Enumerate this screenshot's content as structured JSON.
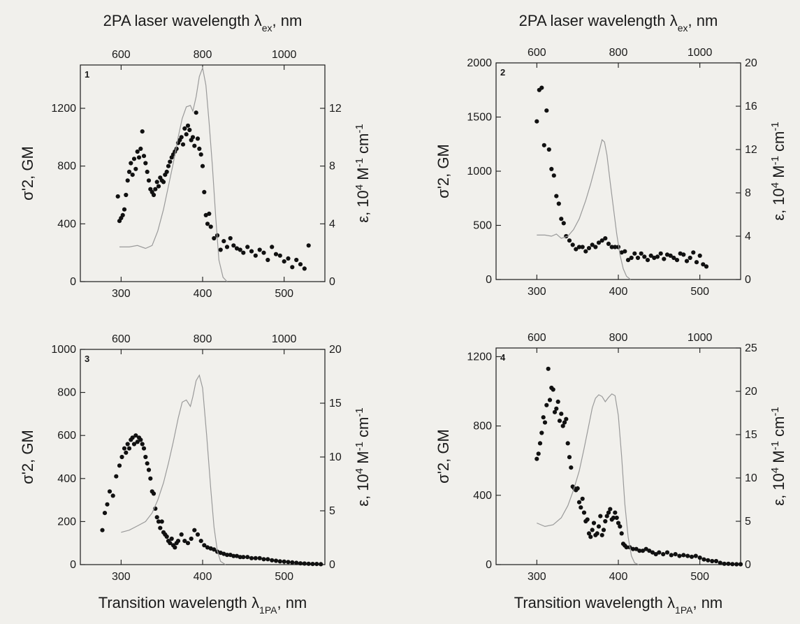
{
  "labels": {
    "top_left": {
      "pre": "2PA laser wavelength λ",
      "sub": "ex",
      "post": ", nm"
    },
    "top_right": {
      "pre": "2PA laser wavelength λ",
      "sub": "ex",
      "post": ", nm"
    },
    "bottom_left": {
      "pre": "Transition wavelength λ",
      "sub": "1PA",
      "post": ", nm"
    },
    "bottom_right": {
      "pre": "Transition wavelength λ",
      "sub": "1PA",
      "post": ", nm"
    },
    "ylabel_left": "σ'2, GM",
    "ylabel_right": {
      "pre": "ε,  10",
      "sup1": "4",
      "mid": " M",
      "sup2": "-1",
      "mid2": " cm",
      "sup3": "-1"
    }
  },
  "colors": {
    "points": "#111111",
    "absorption_line": "#9a9a9a",
    "background": "#f1f0ec"
  },
  "chart_data": [
    {
      "type": "scatter",
      "panel": "1",
      "x_range": [
        250,
        550
      ],
      "x_ticks": [
        300,
        400,
        500
      ],
      "top_ticks": [
        600,
        800,
        1000
      ],
      "y_left_range": [
        0,
        1500
      ],
      "y_left_ticks": [
        0,
        400,
        800,
        1200
      ],
      "y_right_range": [
        0,
        15
      ],
      "y_right_ticks": [
        0,
        4,
        8,
        12
      ],
      "series": [
        {
          "kind": "points",
          "axis": "left",
          "x": [
            296,
            298,
            300,
            302,
            304,
            306,
            308,
            310,
            312,
            314,
            316,
            318,
            320,
            322,
            324,
            326,
            328,
            330,
            332,
            334,
            336,
            338,
            340,
            342,
            344,
            346,
            348,
            350,
            352,
            354,
            356,
            358,
            360,
            362,
            364,
            366,
            368,
            370,
            372,
            374,
            376,
            378,
            380,
            382,
            384,
            386,
            388,
            390,
            392,
            394,
            396,
            398,
            400,
            402,
            404,
            406,
            408,
            410,
            414,
            418,
            422,
            426,
            430,
            434,
            438,
            442,
            446,
            450,
            455,
            460,
            465,
            470,
            475,
            480,
            485,
            490,
            495,
            500,
            505,
            510,
            515,
            520,
            525,
            530
          ],
          "y": [
            590,
            420,
            440,
            460,
            500,
            600,
            700,
            760,
            820,
            740,
            850,
            780,
            900,
            860,
            920,
            1040,
            870,
            820,
            760,
            700,
            640,
            620,
            600,
            640,
            690,
            660,
            720,
            700,
            690,
            740,
            760,
            800,
            830,
            860,
            880,
            900,
            920,
            960,
            980,
            1000,
            950,
            1060,
            1020,
            1080,
            1050,
            980,
            1000,
            940,
            1170,
            990,
            920,
            880,
            800,
            620,
            460,
            400,
            470,
            380,
            300,
            320,
            220,
            280,
            240,
            300,
            250,
            230,
            220,
            200,
            240,
            210,
            180,
            220,
            200,
            150,
            240,
            190,
            180,
            140,
            160,
            100,
            150,
            120,
            90,
            250
          ]
        },
        {
          "kind": "line",
          "axis": "right",
          "x": [
            298,
            310,
            320,
            330,
            338,
            345,
            352,
            358,
            364,
            370,
            375,
            380,
            385,
            388,
            392,
            396,
            400,
            404,
            408,
            412,
            416,
            420,
            425,
            430
          ],
          "y": [
            2.4,
            2.4,
            2.5,
            2.3,
            2.5,
            3.5,
            5.0,
            6.6,
            8.2,
            10.0,
            11.3,
            12.1,
            12.2,
            11.8,
            12.8,
            14.2,
            14.8,
            13.6,
            11.0,
            8.0,
            4.5,
            1.5,
            0.3,
            0.0
          ]
        }
      ]
    },
    {
      "type": "scatter",
      "panel": "2",
      "x_range": [
        250,
        550
      ],
      "x_ticks": [
        300,
        400,
        500
      ],
      "top_ticks": [
        600,
        800,
        1000
      ],
      "y_left_range": [
        0,
        2000
      ],
      "y_left_ticks": [
        0,
        500,
        1000,
        1500,
        2000
      ],
      "y_right_range": [
        0,
        20
      ],
      "y_right_ticks": [
        0,
        4,
        8,
        12,
        16,
        20
      ],
      "series": [
        {
          "kind": "points",
          "axis": "left",
          "x": [
            300,
            303,
            306,
            309,
            312,
            315,
            318,
            321,
            324,
            327,
            330,
            333,
            336,
            340,
            344,
            348,
            352,
            356,
            360,
            364,
            368,
            372,
            376,
            380,
            384,
            388,
            392,
            396,
            400,
            404,
            408,
            412,
            416,
            420,
            424,
            428,
            432,
            436,
            440,
            444,
            448,
            452,
            456,
            460,
            464,
            468,
            472,
            476,
            480,
            484,
            488,
            492,
            496,
            500,
            504,
            508
          ],
          "y": [
            1460,
            1750,
            1770,
            1240,
            1560,
            1200,
            1020,
            960,
            770,
            700,
            560,
            520,
            400,
            360,
            320,
            280,
            300,
            300,
            260,
            290,
            320,
            300,
            340,
            360,
            380,
            330,
            300,
            300,
            300,
            250,
            260,
            180,
            200,
            240,
            200,
            240,
            210,
            180,
            220,
            200,
            210,
            240,
            190,
            230,
            220,
            200,
            180,
            240,
            230,
            170,
            200,
            250,
            160,
            220,
            140,
            120
          ]
        },
        {
          "kind": "line",
          "axis": "right",
          "x": [
            300,
            310,
            318,
            324,
            330,
            338,
            345,
            352,
            360,
            366,
            372,
            377,
            380,
            383,
            386,
            390,
            394,
            398,
            402,
            406,
            410,
            415
          ],
          "y": [
            4.1,
            4.1,
            4.0,
            4.2,
            3.8,
            4.0,
            4.6,
            5.6,
            7.3,
            8.8,
            10.5,
            12.0,
            12.9,
            12.7,
            11.5,
            9.0,
            6.6,
            4.2,
            2.3,
            1.0,
            0.3,
            0.0
          ]
        }
      ]
    },
    {
      "type": "scatter",
      "panel": "3",
      "x_range": [
        250,
        550
      ],
      "x_ticks": [
        300,
        400,
        500
      ],
      "top_ticks": [
        600,
        800,
        1000
      ],
      "y_left_range": [
        0,
        1000
      ],
      "y_left_ticks": [
        0,
        200,
        400,
        600,
        800,
        1000
      ],
      "y_right_range": [
        0,
        20
      ],
      "y_right_ticks": [
        0,
        5,
        10,
        15,
        20
      ],
      "series": [
        {
          "kind": "points",
          "axis": "left",
          "x": [
            277,
            280,
            283,
            286,
            290,
            294,
            298,
            301,
            304,
            306,
            308,
            310,
            312,
            314,
            316,
            318,
            320,
            322,
            324,
            326,
            328,
            330,
            332,
            334,
            336,
            338,
            340,
            342,
            344,
            346,
            348,
            350,
            352,
            354,
            356,
            358,
            360,
            362,
            364,
            366,
            368,
            370,
            374,
            378,
            382,
            386,
            390,
            394,
            398,
            402,
            406,
            410,
            414,
            418,
            422,
            426,
            430,
            434,
            438,
            442,
            446,
            450,
            455,
            460,
            465,
            470,
            475,
            480,
            485,
            490,
            495,
            500,
            505,
            510,
            515,
            520,
            525,
            530,
            535,
            540,
            545
          ],
          "y": [
            160,
            240,
            280,
            340,
            320,
            410,
            460,
            500,
            540,
            520,
            560,
            540,
            580,
            590,
            560,
            600,
            570,
            590,
            580,
            560,
            540,
            500,
            470,
            440,
            400,
            340,
            330,
            260,
            220,
            200,
            170,
            200,
            150,
            140,
            130,
            110,
            100,
            120,
            90,
            80,
            100,
            110,
            140,
            110,
            100,
            120,
            160,
            140,
            110,
            90,
            80,
            75,
            70,
            60,
            55,
            50,
            45,
            45,
            40,
            40,
            35,
            35,
            35,
            30,
            30,
            30,
            25,
            25,
            20,
            18,
            15,
            14,
            12,
            10,
            8,
            6,
            5,
            4,
            3,
            3,
            2
          ]
        },
        {
          "kind": "line",
          "axis": "right",
          "x": [
            300,
            310,
            320,
            330,
            338,
            345,
            352,
            358,
            364,
            370,
            375,
            380,
            385,
            388,
            392,
            396,
            400,
            405,
            410,
            414,
            418,
            422,
            428
          ],
          "y": [
            3.0,
            3.2,
            3.6,
            4.0,
            4.8,
            6.0,
            7.6,
            9.4,
            11.4,
            13.6,
            15.1,
            15.3,
            14.7,
            15.6,
            17.1,
            17.6,
            16.4,
            12.0,
            7.0,
            3.5,
            1.3,
            0.3,
            0.0
          ]
        }
      ]
    },
    {
      "type": "scatter",
      "panel": "4",
      "x_range": [
        250,
        550
      ],
      "x_ticks": [
        300,
        400,
        500
      ],
      "top_ticks": [
        600,
        800,
        1000
      ],
      "y_left_range": [
        0,
        1250
      ],
      "y_left_ticks": [
        0,
        400,
        800,
        1200
      ],
      "y_right_range": [
        0,
        25
      ],
      "y_right_ticks": [
        0,
        5,
        10,
        15,
        20,
        25
      ],
      "series": [
        {
          "kind": "points",
          "axis": "left",
          "x": [
            300,
            302,
            304,
            306,
            308,
            310,
            312,
            314,
            316,
            318,
            320,
            322,
            324,
            326,
            328,
            330,
            332,
            334,
            336,
            338,
            340,
            342,
            344,
            346,
            348,
            350,
            352,
            354,
            356,
            358,
            360,
            362,
            364,
            366,
            368,
            370,
            372,
            374,
            376,
            378,
            380,
            382,
            384,
            386,
            388,
            390,
            392,
            394,
            396,
            398,
            400,
            402,
            404,
            406,
            408,
            410,
            414,
            418,
            422,
            426,
            430,
            434,
            438,
            442,
            446,
            450,
            455,
            460,
            465,
            470,
            475,
            480,
            485,
            490,
            495,
            500,
            505,
            510,
            515,
            520,
            525,
            530,
            535,
            540,
            545,
            550
          ],
          "y": [
            610,
            640,
            700,
            760,
            850,
            820,
            920,
            1130,
            950,
            1020,
            1010,
            880,
            900,
            940,
            830,
            870,
            800,
            820,
            840,
            700,
            620,
            560,
            450,
            440,
            430,
            440,
            360,
            330,
            380,
            300,
            250,
            260,
            180,
            160,
            200,
            240,
            170,
            180,
            220,
            280,
            170,
            200,
            250,
            280,
            300,
            320,
            260,
            270,
            300,
            270,
            240,
            220,
            180,
            120,
            110,
            100,
            100,
            90,
            90,
            80,
            80,
            90,
            80,
            70,
            60,
            70,
            60,
            70,
            55,
            60,
            50,
            55,
            50,
            45,
            50,
            40,
            30,
            25,
            20,
            20,
            10,
            5,
            5,
            3,
            2,
            2
          ]
        },
        {
          "kind": "line",
          "axis": "right",
          "x": [
            300,
            310,
            320,
            330,
            338,
            345,
            352,
            358,
            364,
            368,
            372,
            376,
            380,
            384,
            388,
            392,
            396,
            400,
            404,
            408,
            412,
            416,
            420,
            425
          ],
          "y": [
            4.8,
            4.4,
            4.6,
            5.4,
            6.8,
            8.6,
            10.8,
            13.4,
            16.2,
            18.1,
            19.2,
            19.6,
            19.4,
            18.8,
            19.3,
            19.7,
            19.5,
            17.2,
            12.5,
            7.0,
            3.2,
            1.0,
            0.2,
            0.0
          ]
        }
      ]
    }
  ]
}
